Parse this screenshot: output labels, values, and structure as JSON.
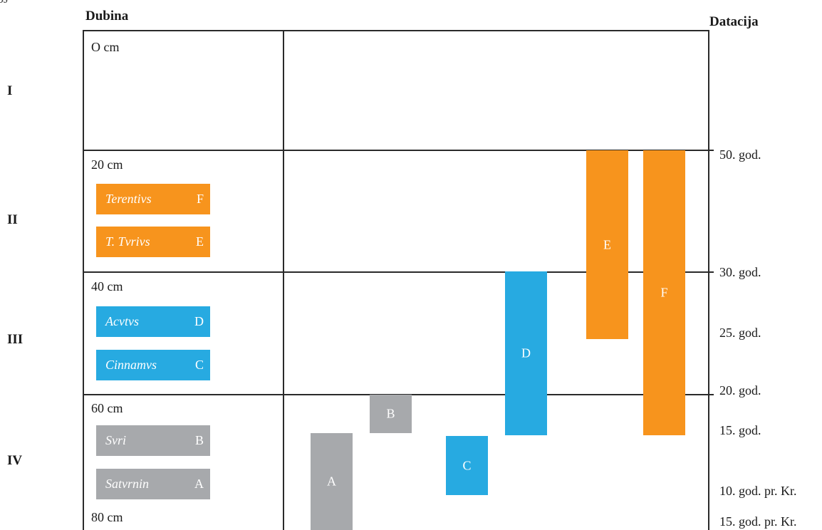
{
  "corner_mark": "5J",
  "header": {
    "depth_title": "Dubina",
    "dating_title": "Datacija"
  },
  "layers": [
    "I",
    "II",
    "III",
    "IV"
  ],
  "depths": [
    "O cm",
    "20 cm",
    "40 cm",
    "60 cm",
    "80 cm"
  ],
  "dates": [
    "50. god.",
    "30. god.",
    "25. god.",
    "20. god.",
    "15. god.",
    "10. god. pr. Kr.",
    "15. god. pr. Kr."
  ],
  "legend": [
    {
      "name": "Terentivs",
      "code": "F",
      "color": "#f7941d"
    },
    {
      "name": "T. Tvrivs",
      "code": "E",
      "color": "#f7941d"
    },
    {
      "name": "Acvtvs",
      "code": "D",
      "color": "#27aae1"
    },
    {
      "name": "Cinnamvs",
      "code": "C",
      "color": "#27aae1"
    },
    {
      "name": "Svri",
      "code": "B",
      "color": "#a7a9ac"
    },
    {
      "name": "Satvrnin",
      "code": "A",
      "color": "#a7a9ac"
    }
  ],
  "bars": [
    {
      "label": "A",
      "color": "#a7a9ac"
    },
    {
      "label": "B",
      "color": "#a7a9ac"
    },
    {
      "label": "C",
      "color": "#27aae1"
    },
    {
      "label": "D",
      "color": "#27aae1"
    },
    {
      "label": "E",
      "color": "#f7941d"
    },
    {
      "label": "F",
      "color": "#f7941d"
    }
  ]
}
